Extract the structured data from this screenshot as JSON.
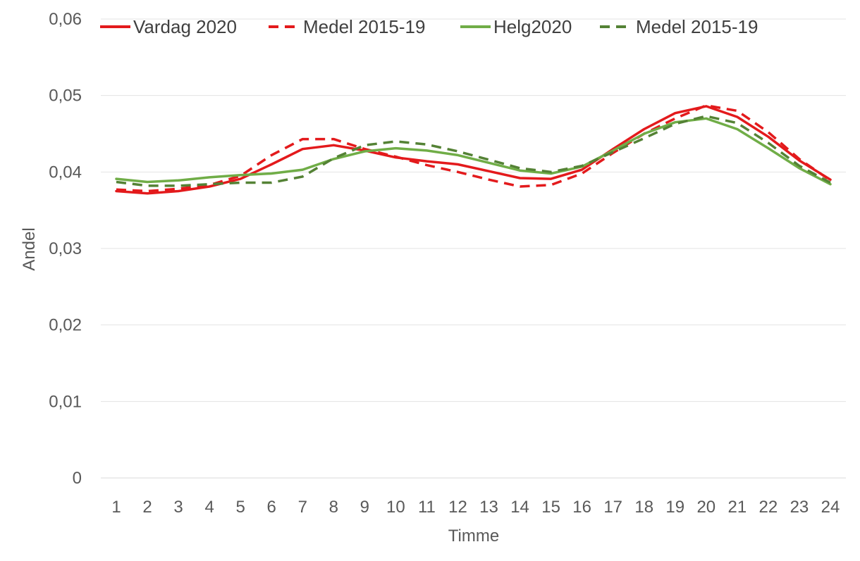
{
  "chart_data": {
    "type": "line",
    "title": "",
    "xlabel": "Timme",
    "ylabel": "Andel",
    "categories": [
      "1",
      "2",
      "3",
      "4",
      "5",
      "6",
      "7",
      "8",
      "9",
      "10",
      "11",
      "12",
      "13",
      "14",
      "15",
      "16",
      "17",
      "18",
      "19",
      "20",
      "21",
      "22",
      "23",
      "24"
    ],
    "y_ticks": [
      "0",
      "0,01",
      "0,02",
      "0,03",
      "0,04",
      "0,05",
      "0,06"
    ],
    "ylim": [
      0,
      0.06
    ],
    "grid": "horizontal",
    "legend_position": "top",
    "series": [
      {
        "name": "Vardag 2020",
        "color": "#e31a1c",
        "dash": "solid",
        "values": [
          0.0375,
          0.0372,
          0.0375,
          0.0381,
          0.0391,
          0.041,
          0.043,
          0.0435,
          0.0428,
          0.0419,
          0.0414,
          0.041,
          0.0401,
          0.0392,
          0.0391,
          0.0403,
          0.043,
          0.0456,
          0.0477,
          0.0486,
          0.0472,
          0.0446,
          0.0415,
          0.039
        ]
      },
      {
        "name": "Medel 2015-19",
        "color": "#e31a1c",
        "dash": "dashed",
        "values": [
          0.0377,
          0.0375,
          0.0378,
          0.0383,
          0.0395,
          0.0422,
          0.0443,
          0.0443,
          0.043,
          0.042,
          0.0409,
          0.04,
          0.039,
          0.0381,
          0.0383,
          0.0398,
          0.0425,
          0.045,
          0.047,
          0.0487,
          0.048,
          0.0452,
          0.0417,
          0.0389
        ]
      },
      {
        "name": "Helg2020",
        "color": "#70ad47",
        "dash": "solid",
        "values": [
          0.0391,
          0.0387,
          0.0389,
          0.0393,
          0.0396,
          0.0398,
          0.0403,
          0.0417,
          0.0427,
          0.0431,
          0.0428,
          0.0422,
          0.0412,
          0.0402,
          0.0398,
          0.0407,
          0.0428,
          0.045,
          0.0465,
          0.047,
          0.0456,
          0.0431,
          0.0405,
          0.0384
        ]
      },
      {
        "name": "Medel 2015-19",
        "color": "#548235",
        "dash": "dashed",
        "values": [
          0.0387,
          0.0382,
          0.0382,
          0.0384,
          0.0386,
          0.0386,
          0.0394,
          0.0418,
          0.0435,
          0.044,
          0.0436,
          0.0427,
          0.0416,
          0.0405,
          0.04,
          0.0408,
          0.0426,
          0.0444,
          0.0463,
          0.0473,
          0.0464,
          0.0438,
          0.0408,
          0.0386
        ]
      }
    ]
  }
}
